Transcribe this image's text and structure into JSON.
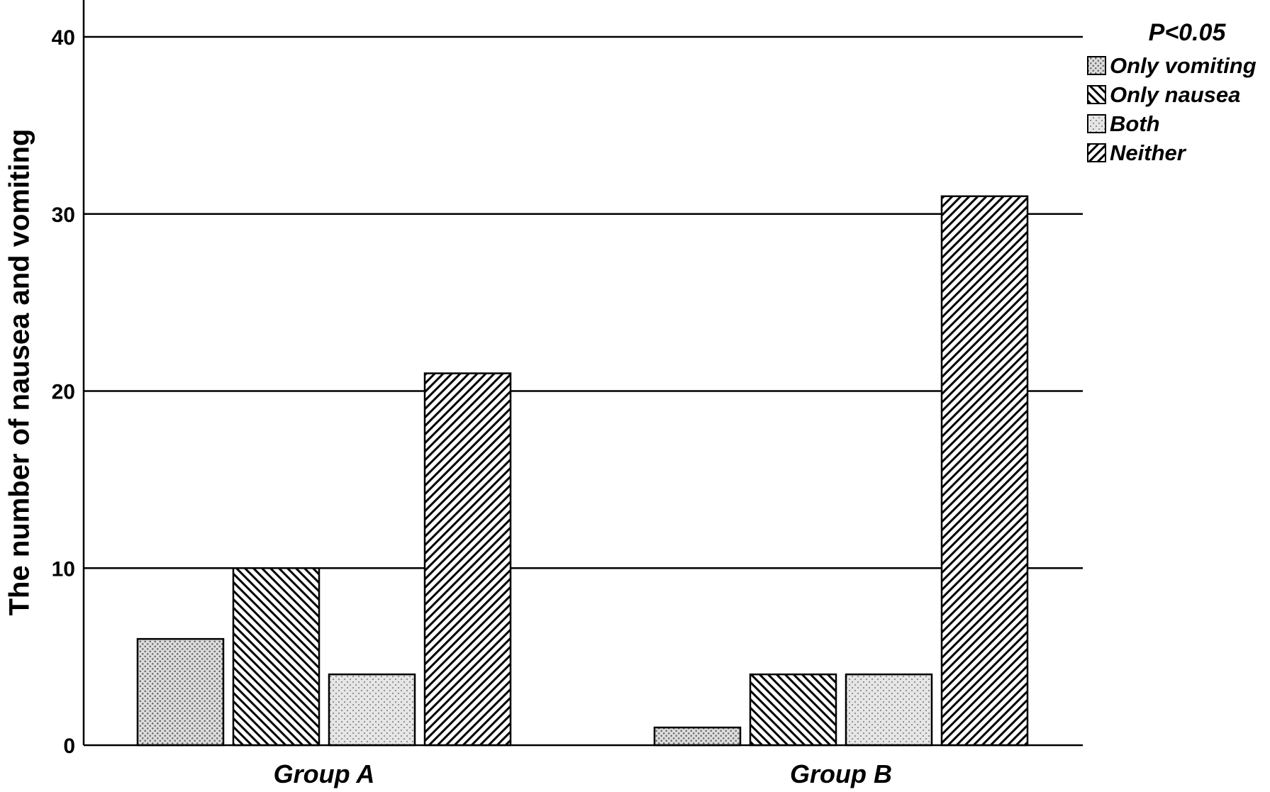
{
  "chart_data": {
    "type": "bar",
    "title": "",
    "xlabel": "",
    "ylabel": "The number of nausea and vomiting",
    "categories": [
      "Group A",
      "Group B"
    ],
    "series": [
      {
        "name": "Only vomiting",
        "values": [
          6,
          1
        ],
        "pattern": "dots-dense"
      },
      {
        "name": "Only nausea",
        "values": [
          10,
          4
        ],
        "pattern": "hatch-backslash"
      },
      {
        "name": "Both",
        "values": [
          4,
          4
        ],
        "pattern": "dots-light"
      },
      {
        "name": "Neither",
        "values": [
          21,
          31
        ],
        "pattern": "hatch-slash"
      }
    ],
    "yticks": [
      0,
      10,
      20,
      30,
      40
    ],
    "ylim": [
      0,
      42
    ],
    "grid": true,
    "legend": {
      "title": "P<0.05",
      "placement": "top-right"
    },
    "colors": {
      "background": "#ffffff",
      "bar_fill": "#e8e8e8",
      "stroke": "#000000"
    }
  }
}
